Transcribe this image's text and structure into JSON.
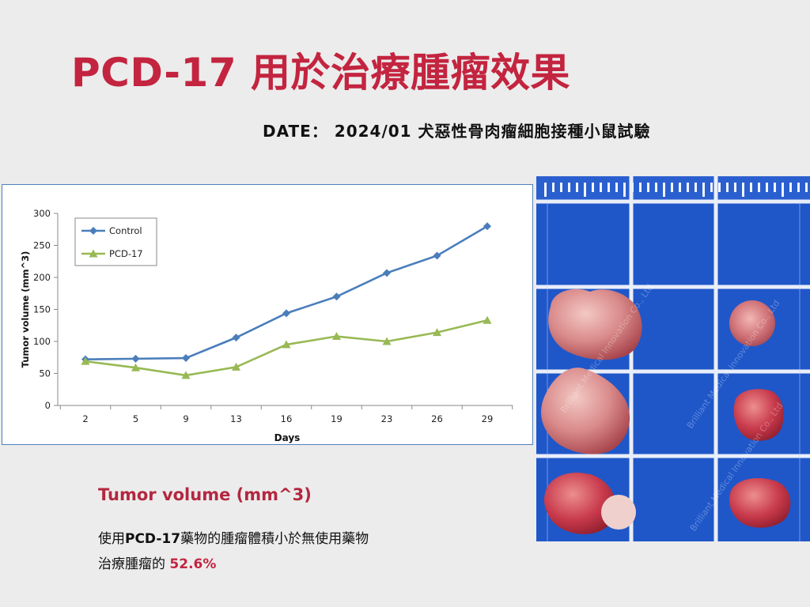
{
  "page": {
    "title": "PCD-17 用於治療腫瘤效果",
    "date_line": "DATE： 2024/01 犬惡性骨肉瘤細胞接種小鼠試驗"
  },
  "caption": {
    "title": "Tumor volume (mm^3)",
    "line1_prefix": "使用",
    "line1_drug": "PCD-17",
    "line1_suffix": "藥物的腫瘤體積小於無使用藥物",
    "line2_prefix": "治療腫瘤的 ",
    "line2_value": "52.6%"
  },
  "photo": {
    "watermark": "Brilliant Medical Innovation Co., Ltd"
  },
  "colors": {
    "title": "#c3243f",
    "control": "#4a7ebb",
    "pcd17": "#98b954",
    "photo_bg": "#1f57c9"
  },
  "chart_data": {
    "type": "line",
    "xlabel": "Days",
    "ylabel": "Tumor volume (mm^3)",
    "categories": [
      "2",
      "5",
      "9",
      "13",
      "16",
      "19",
      "23",
      "26",
      "29"
    ],
    "ylim": [
      0,
      300
    ],
    "yticks": [
      0,
      50,
      100,
      150,
      200,
      250,
      300
    ],
    "grid": false,
    "legend_position": "top-left",
    "series": [
      {
        "name": "Control",
        "marker": "diamond",
        "color": "#4a7ebb",
        "values": [
          72,
          73,
          74,
          106,
          144,
          170,
          207,
          234,
          280
        ]
      },
      {
        "name": "PCD-17",
        "marker": "triangle",
        "color": "#98b954",
        "values": [
          69,
          59,
          47,
          60,
          95,
          108,
          100,
          114,
          133
        ]
      }
    ]
  }
}
